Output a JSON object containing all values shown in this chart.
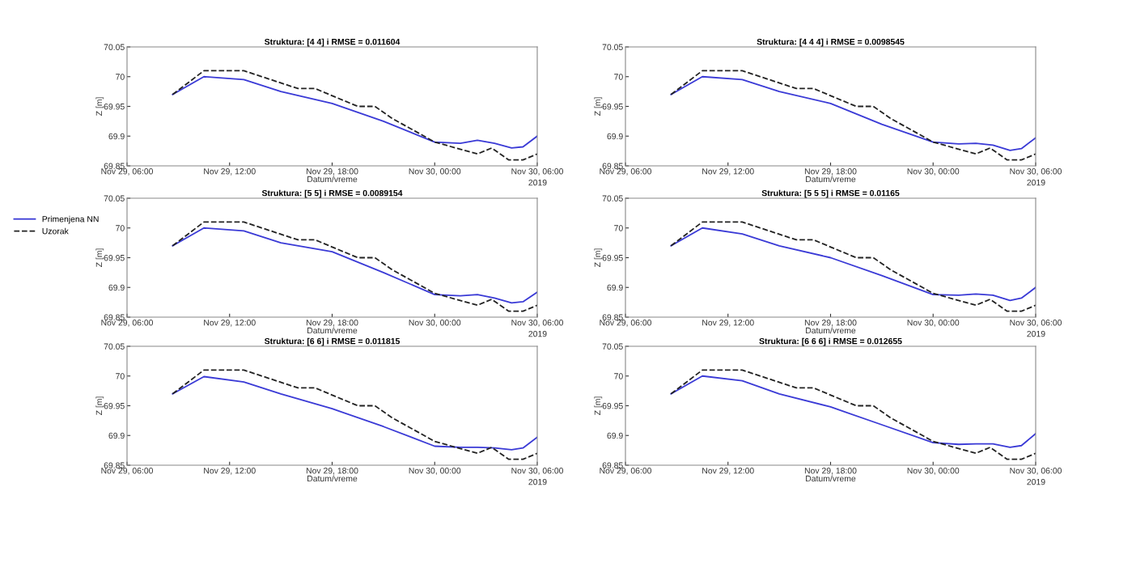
{
  "chart_data": [
    {
      "type": "line",
      "title": "Struktura: [4 4] i RMSE = 0.011604",
      "xlabel": "Datum/vreme",
      "ylabel": "Z [m]",
      "annotations": [
        "2019"
      ],
      "xlim": [
        "2019-11-29T06:00",
        "2019-11-30T06:00"
      ],
      "xticks": [
        {
          "value": "2019-11-29T06:00",
          "label": "Nov 29, 06:00"
        },
        {
          "value": "2019-11-29T12:00",
          "label": "Nov 29, 12:00"
        },
        {
          "value": "2019-11-29T18:00",
          "label": "Nov 29, 18:00"
        },
        {
          "value": "2019-11-30T00:00",
          "label": "Nov 30, 00:00"
        },
        {
          "value": "2019-11-30T06:00",
          "label": "Nov 30, 06:00"
        }
      ],
      "ylim": [
        69.85,
        70.05
      ],
      "yticks": [
        69.85,
        69.9,
        69.95,
        70,
        70.05
      ],
      "grid": false,
      "marker": "none",
      "series": [
        {
          "color": "#3a3ad6",
          "line_style": "solid",
          "x": [
            "2019-11-29T08:40",
            "2019-11-29T10:30",
            "2019-11-29T12:50",
            "2019-11-29T15:00",
            "2019-11-29T18:00",
            "2019-11-29T21:00",
            "2019-11-30T00:00",
            "2019-11-30T01:30",
            "2019-11-30T02:30",
            "2019-11-30T03:30",
            "2019-11-30T04:30",
            "2019-11-30T05:10",
            "2019-11-30T06:00"
          ],
          "values": [
            69.97,
            70.0,
            69.995,
            69.975,
            69.955,
            69.925,
            69.89,
            69.888,
            69.893,
            69.888,
            69.88,
            69.882,
            69.9
          ]
        },
        {
          "color": "#222222",
          "line_style": "dashed",
          "x": [
            "2019-11-29T08:40",
            "2019-11-29T10:30",
            "2019-11-29T12:50",
            "2019-11-29T16:00",
            "2019-11-29T17:00",
            "2019-11-29T19:30",
            "2019-11-29T20:30",
            "2019-11-29T21:30",
            "2019-11-30T00:00",
            "2019-11-30T02:30",
            "2019-11-30T03:20",
            "2019-11-30T04:20",
            "2019-11-30T05:10",
            "2019-11-30T06:00"
          ],
          "values": [
            69.97,
            70.01,
            70.01,
            69.98,
            69.98,
            69.95,
            69.95,
            69.93,
            69.89,
            69.87,
            69.88,
            69.86,
            69.86,
            69.87
          ]
        }
      ]
    },
    {
      "type": "line",
      "title": "Struktura: [4 4 4] i RMSE = 0.0098545",
      "xlabel": "Datum/vreme",
      "ylabel": "Z [m]",
      "annotations": [
        "2019"
      ],
      "xlim": [
        "2019-11-29T06:00",
        "2019-11-30T06:00"
      ],
      "xticks": [
        {
          "value": "2019-11-29T06:00",
          "label": "Nov 29, 06:00"
        },
        {
          "value": "2019-11-29T12:00",
          "label": "Nov 29, 12:00"
        },
        {
          "value": "2019-11-29T18:00",
          "label": "Nov 29, 18:00"
        },
        {
          "value": "2019-11-30T00:00",
          "label": "Nov 30, 00:00"
        },
        {
          "value": "2019-11-30T06:00",
          "label": "Nov 30, 06:00"
        }
      ],
      "ylim": [
        69.85,
        70.05
      ],
      "yticks": [
        69.85,
        69.9,
        69.95,
        70,
        70.05
      ],
      "grid": false,
      "marker": "none",
      "series": [
        {
          "color": "#3a3ad6",
          "line_style": "solid",
          "x": [
            "2019-11-29T08:40",
            "2019-11-29T10:30",
            "2019-11-29T12:50",
            "2019-11-29T15:00",
            "2019-11-29T18:00",
            "2019-11-29T21:00",
            "2019-11-30T00:00",
            "2019-11-30T01:30",
            "2019-11-30T02:30",
            "2019-11-30T03:30",
            "2019-11-30T04:30",
            "2019-11-30T05:10",
            "2019-11-30T06:00"
          ],
          "values": [
            69.97,
            70.0,
            69.995,
            69.975,
            69.955,
            69.92,
            69.89,
            69.887,
            69.888,
            69.885,
            69.876,
            69.879,
            69.897
          ]
        },
        {
          "color": "#222222",
          "line_style": "dashed",
          "x": [
            "2019-11-29T08:40",
            "2019-11-29T10:30",
            "2019-11-29T12:50",
            "2019-11-29T16:00",
            "2019-11-29T17:00",
            "2019-11-29T19:30",
            "2019-11-29T20:30",
            "2019-11-29T21:30",
            "2019-11-30T00:00",
            "2019-11-30T02:30",
            "2019-11-30T03:20",
            "2019-11-30T04:20",
            "2019-11-30T05:10",
            "2019-11-30T06:00"
          ],
          "values": [
            69.97,
            70.01,
            70.01,
            69.98,
            69.98,
            69.95,
            69.95,
            69.93,
            69.89,
            69.87,
            69.88,
            69.86,
            69.86,
            69.87
          ]
        }
      ]
    },
    {
      "type": "line",
      "title": "Struktura: [5 5] i RMSE = 0.0089154",
      "xlabel": "Datum/vreme",
      "ylabel": "Z [m]",
      "annotations": [
        "2019"
      ],
      "legend": "left",
      "xlim": [
        "2019-11-29T06:00",
        "2019-11-30T06:00"
      ],
      "xticks": [
        {
          "value": "2019-11-29T06:00",
          "label": "Nov 29, 06:00"
        },
        {
          "value": "2019-11-29T12:00",
          "label": "Nov 29, 12:00"
        },
        {
          "value": "2019-11-29T18:00",
          "label": "Nov 29, 18:00"
        },
        {
          "value": "2019-11-30T00:00",
          "label": "Nov 30, 00:00"
        },
        {
          "value": "2019-11-30T06:00",
          "label": "Nov 30, 06:00"
        }
      ],
      "ylim": [
        69.85,
        70.05
      ],
      "yticks": [
        69.85,
        69.9,
        69.95,
        70,
        70.05
      ],
      "grid": false,
      "marker": "none",
      "series": [
        {
          "name": "Primenjena NN",
          "color": "#3a3ad6",
          "line_style": "solid",
          "x": [
            "2019-11-29T08:40",
            "2019-11-29T10:30",
            "2019-11-29T12:50",
            "2019-11-29T15:00",
            "2019-11-29T18:00",
            "2019-11-29T21:00",
            "2019-11-30T00:00",
            "2019-11-30T01:30",
            "2019-11-30T02:30",
            "2019-11-30T03:30",
            "2019-11-30T04:30",
            "2019-11-30T05:10",
            "2019-11-30T06:00"
          ],
          "values": [
            69.97,
            70.0,
            69.995,
            69.975,
            69.96,
            69.925,
            69.888,
            69.886,
            69.888,
            69.882,
            69.874,
            69.876,
            69.892
          ]
        },
        {
          "name": "Uzorak",
          "color": "#222222",
          "line_style": "dashed",
          "x": [
            "2019-11-29T08:40",
            "2019-11-29T10:30",
            "2019-11-29T12:50",
            "2019-11-29T16:00",
            "2019-11-29T17:00",
            "2019-11-29T19:30",
            "2019-11-29T20:30",
            "2019-11-29T21:30",
            "2019-11-30T00:00",
            "2019-11-30T02:30",
            "2019-11-30T03:20",
            "2019-11-30T04:20",
            "2019-11-30T05:10",
            "2019-11-30T06:00"
          ],
          "values": [
            69.97,
            70.01,
            70.01,
            69.98,
            69.98,
            69.95,
            69.95,
            69.93,
            69.89,
            69.87,
            69.88,
            69.86,
            69.86,
            69.87
          ]
        }
      ]
    },
    {
      "type": "line",
      "title": "Struktura: [5 5 5] i RMSE = 0.01165",
      "xlabel": "Datum/vreme",
      "ylabel": "Z [m]",
      "annotations": [
        "2019"
      ],
      "xlim": [
        "2019-11-29T06:00",
        "2019-11-30T06:00"
      ],
      "xticks": [
        {
          "value": "2019-11-29T06:00",
          "label": "Nov 29, 06:00"
        },
        {
          "value": "2019-11-29T12:00",
          "label": "Nov 29, 12:00"
        },
        {
          "value": "2019-11-29T18:00",
          "label": "Nov 29, 18:00"
        },
        {
          "value": "2019-11-30T00:00",
          "label": "Nov 30, 00:00"
        },
        {
          "value": "2019-11-30T06:00",
          "label": "Nov 30, 06:00"
        }
      ],
      "ylim": [
        69.85,
        70.05
      ],
      "yticks": [
        69.85,
        69.9,
        69.95,
        70,
        70.05
      ],
      "grid": false,
      "marker": "none",
      "series": [
        {
          "color": "#3a3ad6",
          "line_style": "solid",
          "x": [
            "2019-11-29T08:40",
            "2019-11-29T10:30",
            "2019-11-29T12:50",
            "2019-11-29T15:00",
            "2019-11-29T18:00",
            "2019-11-29T21:00",
            "2019-11-30T00:00",
            "2019-11-30T01:30",
            "2019-11-30T02:30",
            "2019-11-30T03:30",
            "2019-11-30T04:30",
            "2019-11-30T05:10",
            "2019-11-30T06:00"
          ],
          "values": [
            69.97,
            70.0,
            69.99,
            69.97,
            69.95,
            69.92,
            69.888,
            69.887,
            69.889,
            69.887,
            69.878,
            69.882,
            69.9
          ]
        },
        {
          "color": "#222222",
          "line_style": "dashed",
          "x": [
            "2019-11-29T08:40",
            "2019-11-29T10:30",
            "2019-11-29T12:50",
            "2019-11-29T16:00",
            "2019-11-29T17:00",
            "2019-11-29T19:30",
            "2019-11-29T20:30",
            "2019-11-29T21:30",
            "2019-11-30T00:00",
            "2019-11-30T02:30",
            "2019-11-30T03:20",
            "2019-11-30T04:20",
            "2019-11-30T05:10",
            "2019-11-30T06:00"
          ],
          "values": [
            69.97,
            70.01,
            70.01,
            69.98,
            69.98,
            69.95,
            69.95,
            69.93,
            69.89,
            69.87,
            69.88,
            69.86,
            69.86,
            69.87
          ]
        }
      ]
    },
    {
      "type": "line",
      "title": "Struktura: [6 6] i RMSE = 0.011815",
      "xlabel": "Datum/vreme",
      "ylabel": "Z [m]",
      "annotations": [
        "2019"
      ],
      "xlim": [
        "2019-11-29T06:00",
        "2019-11-30T06:00"
      ],
      "xticks": [
        {
          "value": "2019-11-29T06:00",
          "label": "Nov 29, 06:00"
        },
        {
          "value": "2019-11-29T12:00",
          "label": "Nov 29, 12:00"
        },
        {
          "value": "2019-11-29T18:00",
          "label": "Nov 29, 18:00"
        },
        {
          "value": "2019-11-30T00:00",
          "label": "Nov 30, 00:00"
        },
        {
          "value": "2019-11-30T06:00",
          "label": "Nov 30, 06:00"
        }
      ],
      "ylim": [
        69.85,
        70.05
      ],
      "yticks": [
        69.85,
        69.9,
        69.95,
        70,
        70.05
      ],
      "grid": false,
      "marker": "none",
      "series": [
        {
          "color": "#3a3ad6",
          "line_style": "solid",
          "x": [
            "2019-11-29T08:40",
            "2019-11-29T10:30",
            "2019-11-29T12:50",
            "2019-11-29T15:00",
            "2019-11-29T18:00",
            "2019-11-29T21:00",
            "2019-11-30T00:00",
            "2019-11-30T01:30",
            "2019-11-30T02:30",
            "2019-11-30T03:30",
            "2019-11-30T04:30",
            "2019-11-30T05:10",
            "2019-11-30T06:00"
          ],
          "values": [
            69.97,
            69.999,
            69.99,
            69.97,
            69.945,
            69.915,
            69.882,
            69.88,
            69.88,
            69.879,
            69.876,
            69.879,
            69.897
          ]
        },
        {
          "color": "#222222",
          "line_style": "dashed",
          "x": [
            "2019-11-29T08:40",
            "2019-11-29T10:30",
            "2019-11-29T12:50",
            "2019-11-29T16:00",
            "2019-11-29T17:00",
            "2019-11-29T19:30",
            "2019-11-29T20:30",
            "2019-11-29T21:30",
            "2019-11-30T00:00",
            "2019-11-30T02:30",
            "2019-11-30T03:20",
            "2019-11-30T04:20",
            "2019-11-30T05:10",
            "2019-11-30T06:00"
          ],
          "values": [
            69.97,
            70.01,
            70.01,
            69.98,
            69.98,
            69.95,
            69.95,
            69.93,
            69.89,
            69.87,
            69.88,
            69.86,
            69.86,
            69.87
          ]
        }
      ]
    },
    {
      "type": "line",
      "title": "Struktura: [6 6 6] i RMSE = 0.012655",
      "xlabel": "Datum/vreme",
      "ylabel": "Z [m]",
      "annotations": [
        "2019"
      ],
      "xlim": [
        "2019-11-29T06:00",
        "2019-11-30T06:00"
      ],
      "xticks": [
        {
          "value": "2019-11-29T06:00",
          "label": "Nov 29, 06:00"
        },
        {
          "value": "2019-11-29T12:00",
          "label": "Nov 29, 12:00"
        },
        {
          "value": "2019-11-29T18:00",
          "label": "Nov 29, 18:00"
        },
        {
          "value": "2019-11-30T00:00",
          "label": "Nov 30, 00:00"
        },
        {
          "value": "2019-11-30T06:00",
          "label": "Nov 30, 06:00"
        }
      ],
      "ylim": [
        69.85,
        70.05
      ],
      "yticks": [
        69.85,
        69.9,
        69.95,
        70,
        70.05
      ],
      "grid": false,
      "marker": "none",
      "series": [
        {
          "color": "#3a3ad6",
          "line_style": "solid",
          "x": [
            "2019-11-29T08:40",
            "2019-11-29T10:30",
            "2019-11-29T12:50",
            "2019-11-29T15:00",
            "2019-11-29T18:00",
            "2019-11-29T21:00",
            "2019-11-30T00:00",
            "2019-11-30T01:30",
            "2019-11-30T02:30",
            "2019-11-30T03:30",
            "2019-11-30T04:30",
            "2019-11-30T05:10",
            "2019-11-30T06:00"
          ],
          "values": [
            69.97,
            70.0,
            69.992,
            69.97,
            69.948,
            69.918,
            69.888,
            69.885,
            69.886,
            69.886,
            69.88,
            69.883,
            69.903
          ]
        },
        {
          "color": "#222222",
          "line_style": "dashed",
          "x": [
            "2019-11-29T08:40",
            "2019-11-29T10:30",
            "2019-11-29T12:50",
            "2019-11-29T16:00",
            "2019-11-29T17:00",
            "2019-11-29T19:30",
            "2019-11-29T20:30",
            "2019-11-29T21:30",
            "2019-11-30T00:00",
            "2019-11-30T02:30",
            "2019-11-30T03:20",
            "2019-11-30T04:20",
            "2019-11-30T05:10",
            "2019-11-30T06:00"
          ],
          "values": [
            69.97,
            70.01,
            70.01,
            69.98,
            69.98,
            69.95,
            69.95,
            69.93,
            69.89,
            69.87,
            69.88,
            69.86,
            69.86,
            69.87
          ]
        }
      ]
    }
  ]
}
